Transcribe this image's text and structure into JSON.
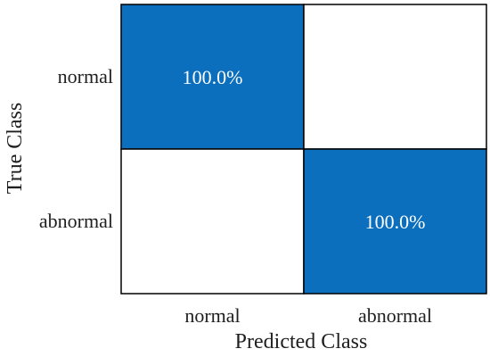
{
  "chart_data": {
    "type": "heatmap",
    "xlabel": "Predicted Class",
    "ylabel": "True Class",
    "x_categories": [
      "normal",
      "abnormal"
    ],
    "y_categories": [
      "normal",
      "abnormal"
    ],
    "values": [
      [
        100.0,
        null
      ],
      [
        null,
        100.0
      ]
    ],
    "cell_labels": [
      [
        "100.0%",
        ""
      ],
      [
        "",
        "100.0%"
      ]
    ],
    "colors": {
      "filled": "#0b6fbd",
      "empty": "#ffffff",
      "filled_text": "#ffffff",
      "grid": "#000000"
    }
  }
}
